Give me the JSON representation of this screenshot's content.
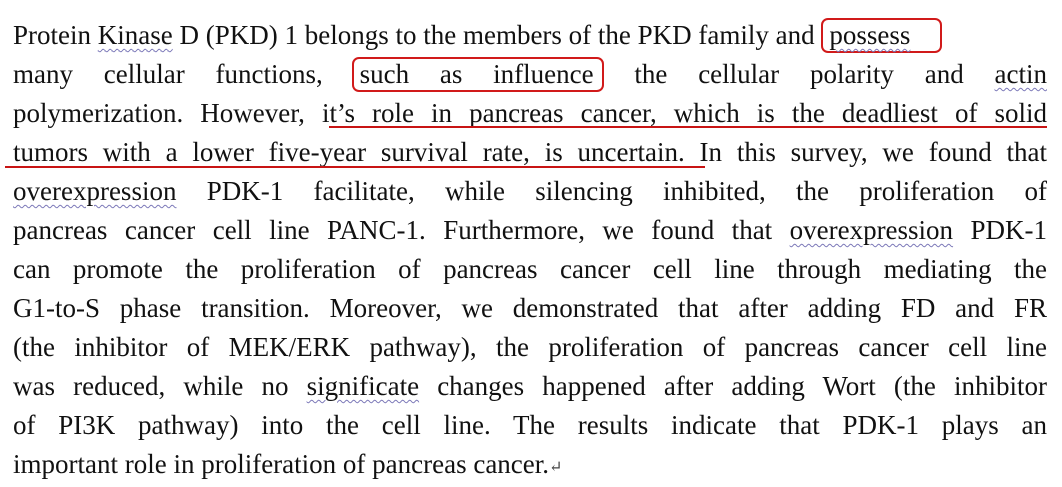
{
  "document": {
    "lines": [
      {
        "s1": "Protein ",
        "kinase": "Kinase",
        "s2": " D (PKD) 1 belongs to the members of the PKD family and ",
        "boxed": "possess"
      },
      {
        "s1": "many cellular functions, ",
        "boxed": "such as influence",
        "s2": " the cellular polarity and ",
        "actin": "actin"
      },
      {
        "s1": "polymerization. However, ",
        "s2": "it’s role in pancreas cancer, which is the deadliest of solid"
      },
      {
        "s1": "tumors with a lower five-year survival rate, is uncertain.",
        "s2": " In this survey, we found that"
      },
      {
        "over": "overexpression",
        "s1": " PDK-1 facilitate, while silencing inhibited, the proliferation of"
      },
      {
        "s1": "pancreas cancer cell line PANC-1. Furthermore, we found that ",
        "over": "overexpression",
        "s2": " PDK-1"
      },
      {
        "text": "can promote the proliferation of pancreas cancer cell line through mediating the"
      },
      {
        "text": "G1-to-S phase transition. Moreover, we demonstrated that after adding FD and FR"
      },
      {
        "text": "(the inhibitor of MEK/ERK pathway), the proliferation of pancreas cancer cell line"
      },
      {
        "s1": "was reduced, while no ",
        "signif": "significate",
        "s2": " changes happened after adding Wort (the inhibitor"
      },
      {
        "text": "of PI3K pathway) into the cell line. The results indicate that PDK-1 plays an"
      },
      {
        "text": "important role in proliferation of pancreas cancer.",
        "mark": "↵"
      }
    ]
  },
  "colors": {
    "annotation_red": "#d11a1a",
    "spellcheck_wavy": "#7b78b8"
  }
}
